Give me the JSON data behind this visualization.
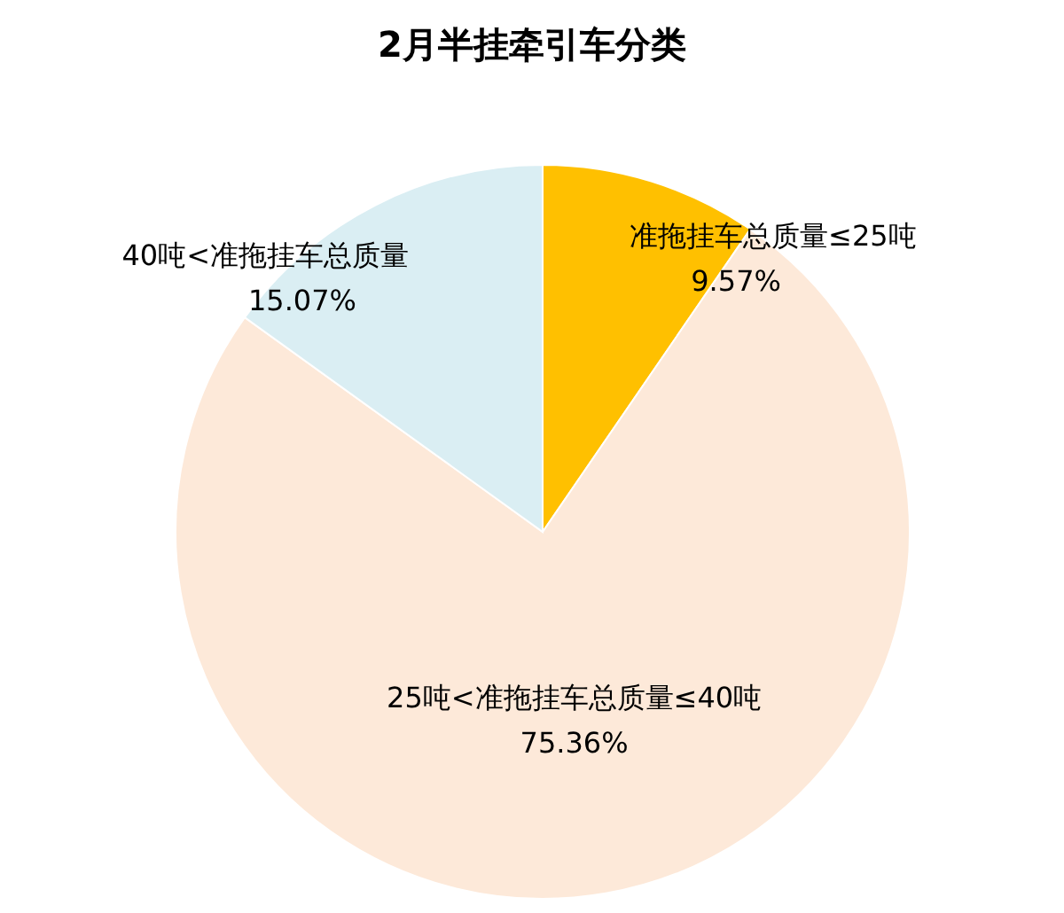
{
  "chart_data": {
    "type": "pie",
    "title": "2月半挂牵引车分类",
    "categories": [
      "准拖挂车总质量≤25吨",
      "25吨<准拖挂车总质量≤40吨",
      "40吨<准拖挂车总质量"
    ],
    "values": [
      9.57,
      75.36,
      15.07
    ],
    "colors": [
      "#ffc000",
      "#fde9d9",
      "#daeef3"
    ],
    "value_labels": [
      "9.57%",
      "75.36%",
      "15.07%"
    ],
    "legend": false
  }
}
